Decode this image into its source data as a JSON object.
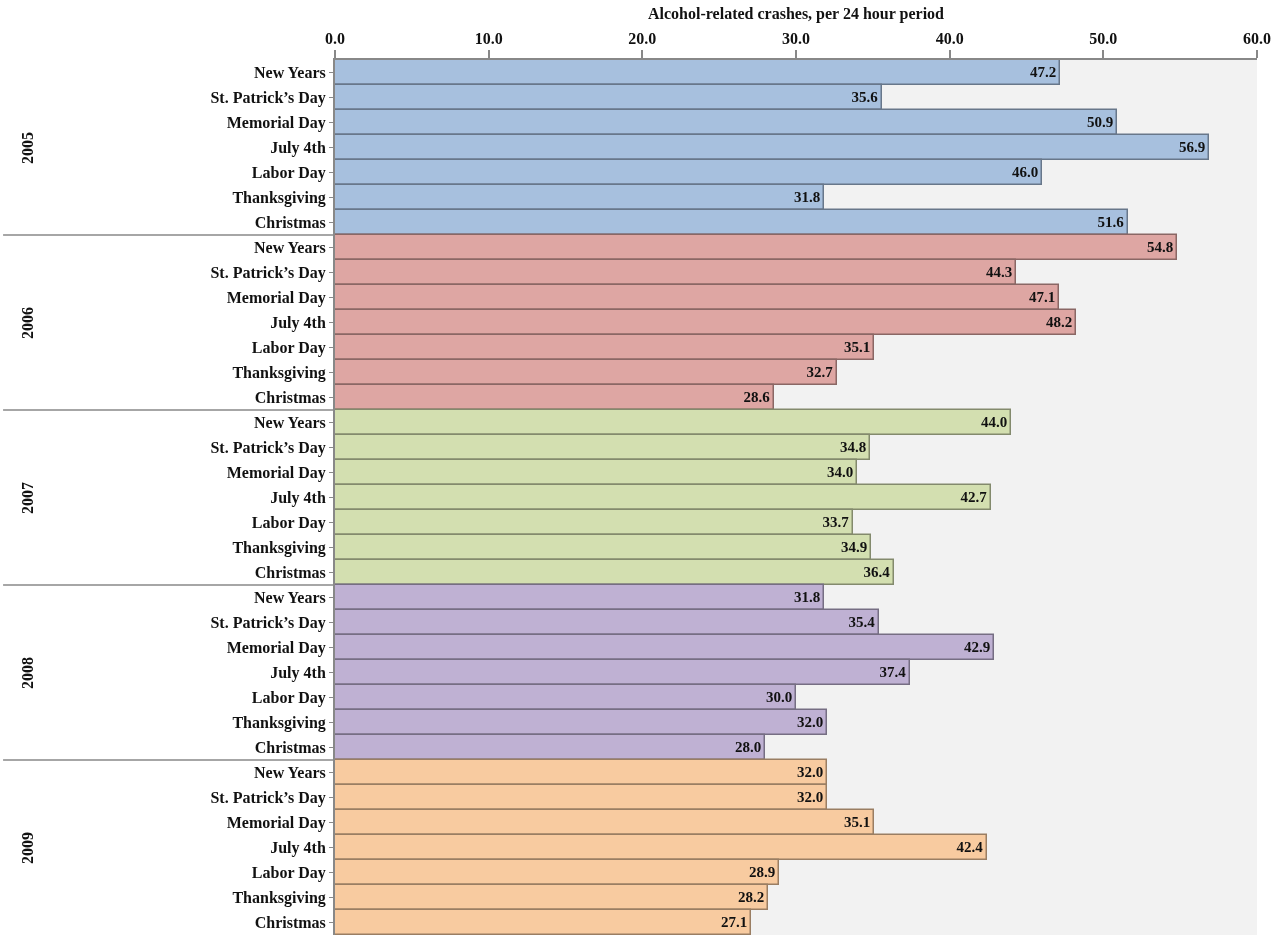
{
  "chart_data": {
    "type": "bar",
    "orientation": "horizontal",
    "xlabel": "Alcohol-related crashes, per 24 hour period",
    "annotations": [
      "2005",
      "2006",
      "2007",
      "2008",
      "2009"
    ],
    "categories": [
      "New Years",
      "St. Patrick’s Day",
      "Memorial Day",
      "July 4th",
      "Labor Day",
      "Thanksgiving",
      "Christmas",
      "New Years",
      "St. Patrick’s Day",
      "Memorial Day",
      "July 4th",
      "Labor Day",
      "Thanksgiving",
      "Christmas",
      "New Years",
      "St. Patrick’s Day",
      "Memorial Day",
      "July 4th",
      "Labor Day",
      "Thanksgiving",
      "Christmas",
      "New Years",
      "St. Patrick’s Day",
      "Memorial Day",
      "July 4th",
      "Labor Day",
      "Thanksgiving",
      "Christmas",
      "New Years",
      "St. Patrick’s Day",
      "Memorial Day",
      "July 4th",
      "Labor Day",
      "Thanksgiving",
      "Christmas"
    ],
    "series": [
      {
        "color": "#a7c0de",
        "values": [
          47.2,
          35.6,
          50.9,
          56.9,
          46.0,
          31.8,
          51.6,
          null,
          null,
          null,
          null,
          null,
          null,
          null,
          null,
          null,
          null,
          null,
          null,
          null,
          null,
          null,
          null,
          null,
          null,
          null,
          null,
          null,
          null,
          null,
          null,
          null,
          null,
          null,
          null
        ],
        "value_labels": [
          "47.2",
          "35.6",
          "50.9",
          "56.9",
          "46.0",
          "31.8",
          "51.6",
          null,
          null,
          null,
          null,
          null,
          null,
          null,
          null,
          null,
          null,
          null,
          null,
          null,
          null,
          null,
          null,
          null,
          null,
          null,
          null,
          null,
          null,
          null,
          null,
          null,
          null,
          null,
          null
        ]
      },
      {
        "color": "#dea6a3",
        "values": [
          null,
          null,
          null,
          null,
          null,
          null,
          null,
          54.8,
          44.3,
          47.1,
          48.2,
          35.1,
          32.7,
          28.6,
          null,
          null,
          null,
          null,
          null,
          null,
          null,
          null,
          null,
          null,
          null,
          null,
          null,
          null,
          null,
          null,
          null,
          null,
          null,
          null,
          null
        ],
        "value_labels": [
          null,
          null,
          null,
          null,
          null,
          null,
          null,
          "54.8",
          "44.3",
          "47.1",
          "48.2",
          "35.1",
          "32.7",
          "28.6",
          null,
          null,
          null,
          null,
          null,
          null,
          null,
          null,
          null,
          null,
          null,
          null,
          null,
          null,
          null,
          null,
          null,
          null,
          null,
          null,
          null
        ]
      },
      {
        "color": "#d3dfb0",
        "values": [
          null,
          null,
          null,
          null,
          null,
          null,
          null,
          null,
          null,
          null,
          null,
          null,
          null,
          null,
          44.0,
          34.8,
          34.0,
          42.7,
          33.7,
          34.9,
          36.4,
          null,
          null,
          null,
          null,
          null,
          null,
          null,
          null,
          null,
          null,
          null,
          null,
          null,
          null
        ],
        "value_labels": [
          null,
          null,
          null,
          null,
          null,
          null,
          null,
          null,
          null,
          null,
          null,
          null,
          null,
          null,
          "44.0",
          "34.8",
          "34.0",
          "42.7",
          "33.7",
          "34.9",
          "36.4",
          null,
          null,
          null,
          null,
          null,
          null,
          null,
          null,
          null,
          null,
          null,
          null,
          null,
          null
        ]
      },
      {
        "color": "#bfb1d3",
        "values": [
          null,
          null,
          null,
          null,
          null,
          null,
          null,
          null,
          null,
          null,
          null,
          null,
          null,
          null,
          null,
          null,
          null,
          null,
          null,
          null,
          null,
          31.8,
          35.4,
          42.9,
          37.4,
          30.0,
          32.0,
          28.0,
          null,
          null,
          null,
          null,
          null,
          null,
          null
        ],
        "value_labels": [
          null,
          null,
          null,
          null,
          null,
          null,
          null,
          null,
          null,
          null,
          null,
          null,
          null,
          null,
          null,
          null,
          null,
          null,
          null,
          null,
          null,
          "31.8",
          "35.4",
          "42.9",
          "37.4",
          "30.0",
          "32.0",
          "28.0",
          null,
          null,
          null,
          null,
          null,
          null,
          null
        ]
      },
      {
        "color": "#f8cba0",
        "values": [
          null,
          null,
          null,
          null,
          null,
          null,
          null,
          null,
          null,
          null,
          null,
          null,
          null,
          null,
          null,
          null,
          null,
          null,
          null,
          null,
          null,
          null,
          null,
          null,
          null,
          null,
          null,
          null,
          32.0,
          32.0,
          35.1,
          42.4,
          28.9,
          28.2,
          27.1
        ],
        "value_labels": [
          null,
          null,
          null,
          null,
          null,
          null,
          null,
          null,
          null,
          null,
          null,
          null,
          null,
          null,
          null,
          null,
          null,
          null,
          null,
          null,
          null,
          null,
          null,
          null,
          null,
          null,
          null,
          null,
          "32.0",
          "32.0",
          "35.1",
          "42.4",
          "28.9",
          "28.2",
          "27.1"
        ]
      }
    ],
    "xlim": [
      0,
      60
    ],
    "xticks": [
      {
        "value": 0,
        "label": "0.0"
      },
      {
        "value": 10,
        "label": "10.0"
      },
      {
        "value": 20,
        "label": "20.0"
      },
      {
        "value": 30,
        "label": "30.0"
      },
      {
        "value": 40,
        "label": "40.0"
      },
      {
        "value": 50,
        "label": "50.0"
      },
      {
        "value": 60,
        "label": "60.0"
      }
    ],
    "grid": false
  }
}
